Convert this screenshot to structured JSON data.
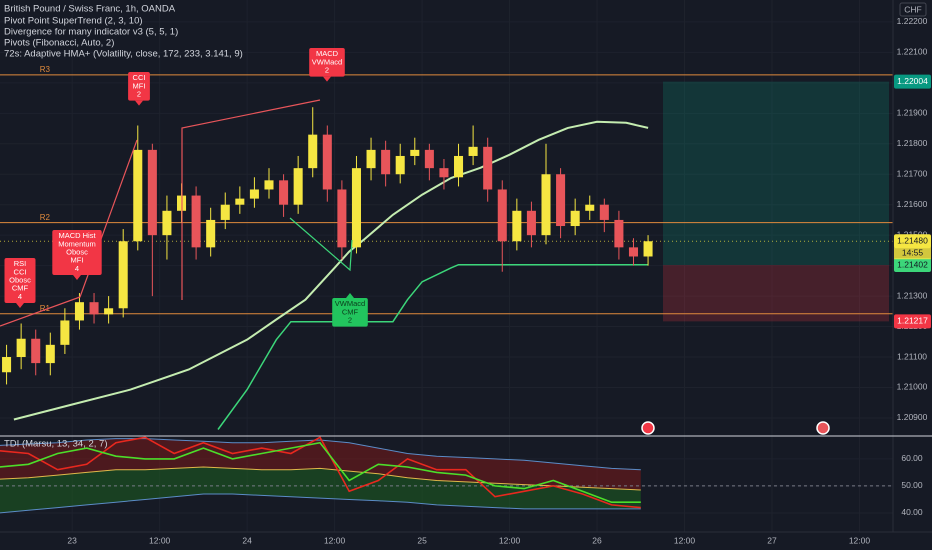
{
  "chart_data": {
    "type": "candlestick",
    "title": "British Pound / Swiss Franc, 1h, OANDA",
    "indicator_labels": [
      "Pivot Point SuperTrend (2, 3, 10)",
      "Divergence for many indicator v3 (5, 5, 1)",
      "Pivots (Fibonacci, Auto, 2)",
      "72s: Adaptive HMA+ (Volatility, close, 172, 233, 3.141, 9)"
    ],
    "currency": "CHF",
    "grid": true,
    "up_color": "#f5e642",
    "down_color": "#e8555a",
    "xlim": [
      -9.9,
      112.6
    ],
    "xticks": [
      {
        "value": 0,
        "label": "23"
      },
      {
        "value": 12,
        "label": "12:00"
      },
      {
        "value": 24,
        "label": "24"
      },
      {
        "value": 36,
        "label": "12:00"
      },
      {
        "value": 48,
        "label": "25"
      },
      {
        "value": 60,
        "label": "12:00"
      },
      {
        "value": 72,
        "label": "26"
      },
      {
        "value": 84,
        "label": "12:00"
      },
      {
        "value": 96,
        "label": "27"
      },
      {
        "value": 108,
        "label": "12:00"
      }
    ],
    "ylim": [
      1.20844,
      1.22272
    ],
    "yticks": [
      {
        "value": 1.222,
        "label": "1.22200"
      },
      {
        "value": 1.221,
        "label": "1.22100"
      },
      {
        "value": 1.22,
        "label": "1.22000"
      },
      {
        "value": 1.219,
        "label": "1.21900"
      },
      {
        "value": 1.218,
        "label": "1.21800"
      },
      {
        "value": 1.217,
        "label": "1.21700"
      },
      {
        "value": 1.216,
        "label": "1.21600"
      },
      {
        "value": 1.215,
        "label": "1.21500"
      },
      {
        "value": 1.214,
        "label": "1.21400"
      },
      {
        "value": 1.213,
        "label": "1.21300"
      },
      {
        "value": 1.212,
        "label": "1.21200"
      },
      {
        "value": 1.211,
        "label": "1.21100"
      },
      {
        "value": 1.21,
        "label": "1.21000"
      },
      {
        "value": 1.209,
        "label": "1.20900"
      }
    ],
    "candles": {
      "x": [
        -9,
        -7,
        -5,
        -3,
        -1,
        1,
        3,
        5,
        7,
        9,
        11,
        13,
        15,
        17,
        19,
        21,
        23,
        25,
        27,
        29,
        31,
        33,
        35,
        37,
        39,
        41,
        43,
        45,
        47,
        49,
        51,
        53,
        55,
        57,
        59,
        61,
        63,
        65,
        67,
        69,
        71,
        73,
        75,
        77,
        79
      ],
      "open": [
        1.2105,
        1.211,
        1.2116,
        1.2108,
        1.2114,
        1.2122,
        1.2128,
        1.2124,
        1.2126,
        1.2148,
        1.2178,
        1.215,
        1.2158,
        1.2163,
        1.2146,
        1.2155,
        1.216,
        1.2162,
        1.2165,
        1.2168,
        1.216,
        1.2172,
        1.2183,
        1.2165,
        1.2146,
        1.2172,
        1.2178,
        1.217,
        1.2176,
        1.2178,
        1.2172,
        1.2169,
        1.2176,
        1.2179,
        1.2165,
        1.2148,
        1.2158,
        1.215,
        1.217,
        1.2153,
        1.2158,
        1.216,
        1.2155,
        1.2146,
        1.2143
      ],
      "high": [
        1.2114,
        1.2121,
        1.2119,
        1.2118,
        1.2126,
        1.2131,
        1.2131,
        1.213,
        1.2152,
        1.2186,
        1.218,
        1.2163,
        1.2167,
        1.2166,
        1.2159,
        1.2164,
        1.2166,
        1.2169,
        1.2172,
        1.217,
        1.2176,
        1.2192,
        1.2186,
        1.2168,
        1.2176,
        1.2182,
        1.2181,
        1.218,
        1.2182,
        1.218,
        1.2175,
        1.218,
        1.2186,
        1.2182,
        1.2168,
        1.2162,
        1.2161,
        1.218,
        1.2172,
        1.2162,
        1.2163,
        1.2162,
        1.2158,
        1.2149,
        1.215
      ],
      "low": [
        1.2101,
        1.2106,
        1.2104,
        1.2104,
        1.2111,
        1.2119,
        1.2121,
        1.2121,
        1.2123,
        1.2145,
        1.213,
        1.2142,
        1.2154,
        1.2142,
        1.2143,
        1.2152,
        1.2157,
        1.2159,
        1.2162,
        1.2156,
        1.2157,
        1.2169,
        1.2161,
        1.2142,
        1.2144,
        1.2168,
        1.2166,
        1.2167,
        1.2173,
        1.2168,
        1.2165,
        1.2166,
        1.2173,
        1.2161,
        1.2138,
        1.2145,
        1.2146,
        1.2147,
        1.2149,
        1.215,
        1.2155,
        1.2151,
        1.2142,
        1.214,
        1.214
      ],
      "close": [
        1.211,
        1.2116,
        1.2108,
        1.2114,
        1.2122,
        1.2128,
        1.2124,
        1.2126,
        1.2148,
        1.2178,
        1.215,
        1.2158,
        1.2163,
        1.2146,
        1.2155,
        1.216,
        1.2162,
        1.2165,
        1.2168,
        1.216,
        1.2172,
        1.2183,
        1.2165,
        1.2146,
        1.2172,
        1.2178,
        1.217,
        1.2176,
        1.2178,
        1.2172,
        1.2169,
        1.2176,
        1.2179,
        1.2165,
        1.2148,
        1.2158,
        1.215,
        1.217,
        1.2153,
        1.2158,
        1.216,
        1.2155,
        1.2146,
        1.2143,
        1.2148
      ]
    },
    "indicators": [
      {
        "color": "#c4ecb0",
        "x": [
          -8,
          0,
          8,
          16,
          24,
          28,
          32,
          36,
          38,
          40,
          44,
          48,
          52,
          56,
          60,
          64,
          68,
          72,
          76,
          79
        ],
        "values": [
          1.20895,
          1.20944,
          1.20993,
          1.21059,
          1.21157,
          1.21223,
          1.21288,
          1.21393,
          1.21446,
          1.21485,
          1.21567,
          1.21633,
          1.21688,
          1.21721,
          1.21764,
          1.21813,
          1.21852,
          1.21872,
          1.21869,
          1.21852
        ]
      },
      {
        "color": "#3cd67a",
        "x": [
          20,
          24,
          28,
          30,
          44,
          46,
          48,
          52,
          53,
          79
        ],
        "values": [
          1.20862,
          1.20993,
          1.21157,
          1.21216,
          1.21216,
          1.21288,
          1.21347,
          1.21393,
          1.21403,
          1.21403
        ]
      }
    ],
    "pivots": [
      {
        "label": "R3",
        "value": 1.22026
      },
      {
        "label": "R2",
        "value": 1.21541
      },
      {
        "label": "R1",
        "value": 1.21242
      }
    ],
    "pivot_color": "#e08a3c",
    "price_markers": [
      {
        "value": 1.22004,
        "label": "1.22004",
        "color": "#089981",
        "text_color": "#ffffff"
      },
      {
        "value": 1.2148,
        "label": "1.21480",
        "color": "#f5e642",
        "text_color": "#131722"
      },
      {
        "value": 1.21402,
        "label": "1.21402",
        "color": "#3cd67a",
        "text_color": "#131722"
      },
      {
        "value": 1.21217,
        "label": "1.21217",
        "color": "#f23645",
        "text_color": "#ffffff"
      }
    ],
    "countdown": "14:55",
    "signals": [
      {
        "lines": [
          "RSI",
          "CCI",
          "Obosc",
          "CMF",
          "4"
        ],
        "color": "#f23645"
      },
      {
        "lines": [
          "MACD Hist",
          "Momentum",
          "Obosc",
          "MFI",
          "4"
        ],
        "color": "#f23645"
      },
      {
        "lines": [
          "CCI",
          "MFI",
          "2"
        ],
        "color": "#f23645"
      },
      {
        "lines": [
          "MACD",
          "VWMacd",
          "2"
        ],
        "color": "#f23645"
      },
      {
        "lines": [
          "VWMacd",
          "CMF",
          "2"
        ],
        "color": "#22c55e"
      }
    ],
    "tdi": {
      "title": "TDI (Marsu, 13, 34, 2, 7)",
      "ylim": [
        33.7,
        68.1
      ],
      "yticks": [
        {
          "value": 60,
          "label": "60.00"
        },
        {
          "value": 50,
          "label": "50.00"
        },
        {
          "value": 40,
          "label": "40.00"
        }
      ],
      "midline": 50,
      "x": [
        -10,
        -6,
        -2,
        2,
        6,
        10,
        14,
        18,
        22,
        26,
        30,
        34,
        38,
        42,
        46,
        50,
        54,
        58,
        62,
        66,
        70,
        74,
        78
      ],
      "upper": [
        65,
        65.5,
        66,
        67,
        67.5,
        67.5,
        67,
        66.5,
        66,
        66,
        66.5,
        67,
        66,
        64,
        62,
        61,
        60.5,
        60,
        59.5,
        58.5,
        57.5,
        56.5,
        56
      ],
      "lower": [
        40,
        41,
        42,
        43,
        44,
        45,
        46,
        47,
        47,
        46.5,
        46,
        45.5,
        45,
        44.5,
        44,
        43,
        42.5,
        42,
        41.5,
        41.5,
        41.5,
        41.5,
        41.5
      ],
      "series": [
        {
          "color": "#e0b84a",
          "values": [
            52.5,
            53,
            54,
            55,
            56,
            56,
            56.5,
            57,
            56.5,
            56,
            56,
            56.5,
            55.5,
            54.5,
            53,
            52,
            51.5,
            51,
            50.5,
            50,
            49.5,
            49,
            48.5
          ]
        },
        {
          "color": "#e8281e",
          "values": [
            63,
            62,
            56,
            58,
            66,
            68,
            62,
            66,
            62,
            64,
            62,
            68,
            48,
            52,
            60,
            56,
            56,
            46,
            48,
            50,
            47,
            43,
            42
          ]
        },
        {
          "color": "#4cde2a",
          "values": [
            57,
            58,
            62,
            64,
            61,
            60,
            60,
            64,
            60,
            62,
            64,
            66,
            52,
            58,
            57,
            55,
            54,
            50,
            49,
            52,
            48,
            44,
            44
          ]
        }
      ]
    }
  }
}
